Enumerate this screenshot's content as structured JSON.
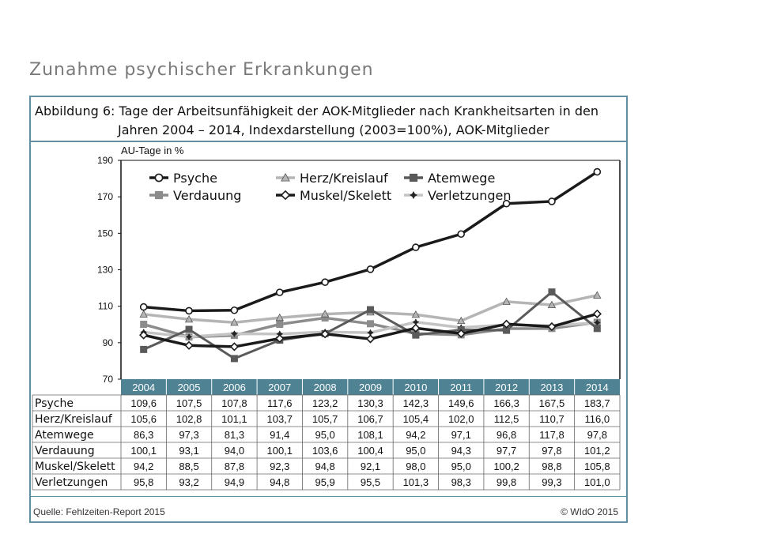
{
  "slide_title": "Zunahme psychischer Erkrankungen",
  "caption": {
    "line1": "Abbildung 6: Tage der Arbeitsunfähigkeit der AOK-Mitglieder nach Krankheitsarten in den",
    "line2": "Jahren 2004 – 2014, Indexdarstellung (2003=100%), AOK-Mitglieder"
  },
  "source": "Quelle: Fehlzeiten-Report 2015",
  "copyright": "© WIdO 2015",
  "chart_data": {
    "type": "line",
    "ylabel": "AU-Tage in %",
    "ylim": [
      70,
      190
    ],
    "yticks": [
      70,
      90,
      110,
      130,
      150,
      170,
      190
    ],
    "legend_position": "top",
    "grid": false,
    "categories": [
      "2004",
      "2005",
      "2006",
      "2007",
      "2008",
      "2009",
      "2010",
      "2011",
      "2012",
      "2013",
      "2014"
    ],
    "series": [
      {
        "name": "Psyche",
        "color": "#1a1a1a",
        "marker": "circle",
        "values": [
          "109,6",
          "107,5",
          "107,8",
          "117,6",
          "123,2",
          "130,3",
          "142,3",
          "149,6",
          "166,3",
          "167,5",
          "183,7"
        ]
      },
      {
        "name": "Herz/Kreislauf",
        "color": "#b5b5b5",
        "marker": "triangle",
        "values": [
          "105,6",
          "102,8",
          "101,1",
          "103,7",
          "105,7",
          "106,7",
          "105,4",
          "102,0",
          "112,5",
          "110,7",
          "116,0"
        ]
      },
      {
        "name": "Atemwege",
        "color": "#5a5a5a",
        "marker": "square",
        "values": [
          "86,3",
          "97,3",
          "81,3",
          "91,4",
          "95,0",
          "108,1",
          "94,2",
          "97,1",
          "96,8",
          "117,8",
          "97,8"
        ]
      },
      {
        "name": "Verdauung",
        "color": "#8c8c8c",
        "marker": "square",
        "values": [
          "100,1",
          "93,1",
          "94,0",
          "100,1",
          "103,6",
          "100,4",
          "95,0",
          "94,3",
          "97,7",
          "97,8",
          "101,2"
        ]
      },
      {
        "name": "Muskel/Skelett",
        "color": "#1a1a1a",
        "marker": "diamond",
        "values": [
          "94,2",
          "88,5",
          "87,8",
          "92,3",
          "94,8",
          "92,1",
          "98,0",
          "95,0",
          "100,2",
          "98,8",
          "105,8"
        ]
      },
      {
        "name": "Verletzungen",
        "color": "#c4c4c4",
        "marker": "star",
        "values": [
          "95,8",
          "93,2",
          "94,9",
          "94,8",
          "95,9",
          "95,5",
          "101,3",
          "98,3",
          "99,8",
          "99,3",
          "101,0"
        ]
      }
    ]
  }
}
